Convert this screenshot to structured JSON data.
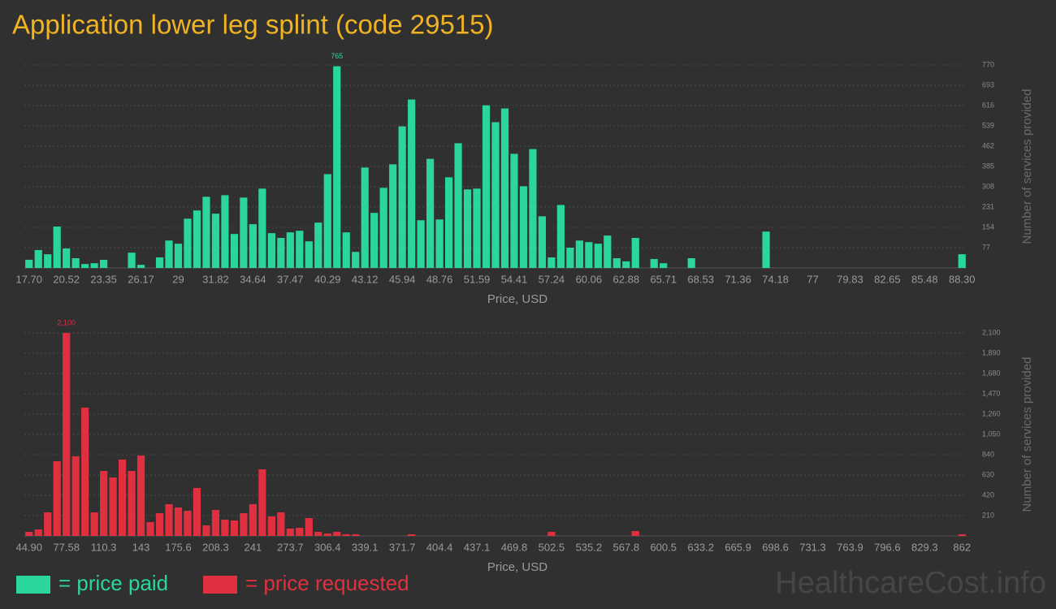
{
  "title": "Application lower leg splint (code 29515)",
  "watermark": "HealthcareCost.info",
  "chart_data": [
    {
      "type": "bar",
      "x_label": "Price, USD",
      "y_label": "Number of services provided",
      "grid": true,
      "categories": [
        "17.70",
        null,
        null,
        null,
        "20.52",
        null,
        null,
        null,
        "23.35",
        null,
        null,
        null,
        "26.17",
        null,
        null,
        null,
        "29",
        null,
        null,
        null,
        "31.82",
        null,
        null,
        null,
        "34.64",
        null,
        null,
        null,
        "37.47",
        null,
        null,
        null,
        "40.29",
        null,
        null,
        null,
        "43.12",
        null,
        null,
        null,
        "45.94",
        null,
        null,
        null,
        "48.76",
        null,
        null,
        null,
        "51.59",
        null,
        null,
        null,
        "54.41",
        null,
        null,
        null,
        "57.24",
        null,
        null,
        null,
        "60.06",
        null,
        null,
        null,
        "62.88",
        null,
        null,
        null,
        "65.71",
        null,
        null,
        null,
        "68.53",
        null,
        null,
        null,
        "71.36",
        null,
        null,
        null,
        "74.18",
        null,
        null,
        null,
        "77",
        null,
        null,
        null,
        "79.83",
        null,
        null,
        null,
        "82.65",
        null,
        null,
        null,
        "85.48",
        null,
        null,
        null,
        "88.30"
      ],
      "series": [
        {
          "name": "= price paid",
          "color": "#2bd69b",
          "values": [
            31,
            68,
            52,
            157,
            74,
            37,
            15,
            18,
            31,
            0,
            0,
            58,
            12,
            0,
            40,
            104,
            92,
            187,
            218,
            270,
            206,
            276,
            129,
            267,
            166,
            301,
            132,
            114,
            135,
            141,
            101,
            172,
            356,
            765,
            135,
            61,
            381,
            209,
            304,
            393,
            537,
            639,
            181,
            414,
            184,
            344,
            473,
            298,
            301,
            617,
            553,
            605,
            433,
            310,
            451,
            196,
            40,
            239,
            77,
            104,
            98,
            92,
            123,
            37,
            25,
            114,
            0,
            34,
            18,
            0,
            0,
            37,
            0,
            0,
            0,
            0,
            0,
            0,
            0,
            138,
            0,
            0,
            0,
            0,
            0,
            0,
            0,
            0,
            0,
            0,
            0,
            0,
            0,
            0,
            0,
            0,
            0,
            0,
            0,
            0,
            52
          ],
          "value_labels": [
            null,
            null,
            null,
            null,
            null,
            null,
            null,
            null,
            null,
            null,
            null,
            null,
            null,
            null,
            null,
            null,
            null,
            null,
            null,
            null,
            null,
            null,
            null,
            null,
            null,
            null,
            null,
            null,
            null,
            null,
            null,
            null,
            null,
            "765",
            null,
            null,
            null,
            null,
            null,
            null,
            null,
            null,
            null,
            null,
            null,
            null,
            null,
            null,
            null,
            null,
            null,
            null,
            null,
            null,
            null,
            null,
            null,
            null,
            null,
            null,
            null,
            null,
            null,
            null,
            null,
            null,
            null,
            null,
            null,
            null,
            null,
            null,
            null,
            null,
            null,
            null,
            null,
            null,
            null,
            null,
            null,
            null,
            null,
            null,
            null,
            null,
            null,
            null,
            null,
            null,
            null,
            null,
            null,
            null,
            null,
            null,
            null,
            null,
            null,
            null,
            null
          ]
        }
      ],
      "ylim": [
        0,
        770
      ],
      "yticks": [
        77,
        154,
        231,
        308,
        385,
        462,
        539,
        616,
        693,
        770
      ]
    },
    {
      "type": "bar",
      "x_label": "Price, USD",
      "y_label": "Number of services provided",
      "grid": true,
      "categories": [
        "44.90",
        null,
        null,
        null,
        "77.58",
        null,
        null,
        null,
        "110.3",
        null,
        null,
        null,
        "143",
        null,
        null,
        null,
        "175.6",
        null,
        null,
        null,
        "208.3",
        null,
        null,
        null,
        "241",
        null,
        null,
        null,
        "273.7",
        null,
        null,
        null,
        "306.4",
        null,
        null,
        null,
        "339.1",
        null,
        null,
        null,
        "371.7",
        null,
        null,
        null,
        "404.4",
        null,
        null,
        null,
        "437.1",
        null,
        null,
        null,
        "469.8",
        null,
        null,
        null,
        "502.5",
        null,
        null,
        null,
        "535.2",
        null,
        null,
        null,
        "567.8",
        null,
        null,
        null,
        "600.5",
        null,
        null,
        null,
        "633.2",
        null,
        null,
        null,
        "665.9",
        null,
        null,
        null,
        "698.6",
        null,
        null,
        null,
        "731.3",
        null,
        null,
        null,
        "763.9",
        null,
        null,
        null,
        "796.6",
        null,
        null,
        null,
        "829.3",
        null,
        null,
        null,
        "862"
      ],
      "series": [
        {
          "name": "= price requested",
          "color": "#e0303f",
          "values": [
            42,
            67,
            244,
            773,
            2100,
            823,
            1327,
            244,
            672,
            605,
            790,
            672,
            832,
            143,
            235,
            328,
            294,
            260,
            496,
            109,
            269,
            168,
            160,
            235,
            328,
            689,
            202,
            244,
            76,
            84,
            185,
            42,
            25,
            42,
            17,
            17,
            0,
            0,
            0,
            0,
            0,
            17,
            0,
            0,
            0,
            0,
            0,
            0,
            0,
            0,
            0,
            0,
            0,
            0,
            0,
            0,
            42,
            0,
            0,
            0,
            0,
            0,
            0,
            0,
            0,
            50,
            0,
            0,
            0,
            0,
            0,
            0,
            0,
            0,
            0,
            0,
            0,
            0,
            0,
            0,
            0,
            0,
            0,
            0,
            0,
            0,
            0,
            0,
            0,
            0,
            0,
            0,
            0,
            0,
            0,
            0,
            0,
            0,
            0,
            0,
            17
          ],
          "value_labels": [
            null,
            null,
            null,
            null,
            "2,100",
            null,
            null,
            null,
            null,
            null,
            null,
            null,
            null,
            null,
            null,
            null,
            null,
            null,
            null,
            null,
            null,
            null,
            null,
            null,
            null,
            null,
            null,
            null,
            null,
            null,
            null,
            null,
            null,
            null,
            null,
            null,
            null,
            null,
            null,
            null,
            null,
            null,
            null,
            null,
            null,
            null,
            null,
            null,
            null,
            null,
            null,
            null,
            null,
            null,
            null,
            null,
            null,
            null,
            null,
            null,
            null,
            null,
            null,
            null,
            null,
            null,
            null,
            null,
            null,
            null,
            null,
            null,
            null,
            null,
            null,
            null,
            null,
            null,
            null,
            null,
            null,
            null,
            null,
            null,
            null,
            null,
            null,
            null,
            null,
            null,
            null,
            null,
            null,
            null,
            null,
            null,
            null,
            null,
            null,
            null,
            null
          ]
        }
      ],
      "ylim": [
        0,
        2100
      ],
      "yticks": [
        210,
        420,
        630,
        840,
        {
          "value": 1050,
          "label": "1,050"
        },
        {
          "value": 1260,
          "label": "1,260"
        },
        {
          "value": 1470,
          "label": "1,470"
        },
        {
          "value": 1680,
          "label": "1,680"
        },
        {
          "value": 1890,
          "label": "1,890"
        },
        {
          "value": 2100,
          "label": "2,100"
        }
      ]
    }
  ]
}
